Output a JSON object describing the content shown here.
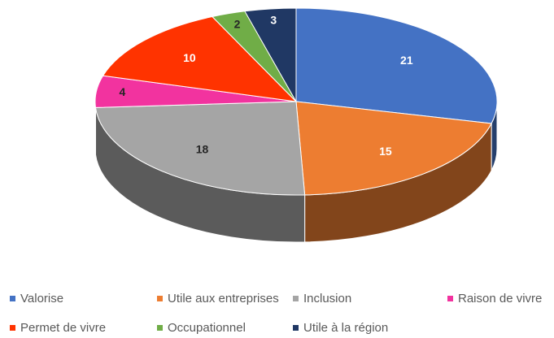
{
  "chart_data": {
    "type": "pie",
    "categories": [
      "Valorise",
      "Utile aux entreprises",
      "Inclusion",
      "Raison de vivre",
      "Permet de vivre",
      "Occupationnel",
      "Utile à la région"
    ],
    "values": [
      21,
      15,
      18,
      4,
      10,
      2,
      3
    ],
    "colors": [
      "#4472c4",
      "#ed7d31",
      "#a5a5a5",
      "#f2339f",
      "#ff3300",
      "#70ad47",
      "#203864"
    ],
    "legend": "bottom"
  }
}
